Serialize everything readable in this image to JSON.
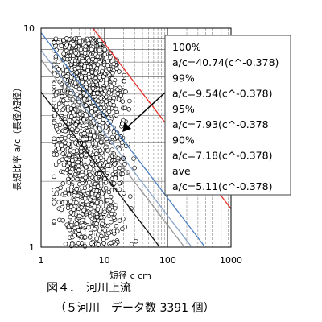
{
  "chart_data": {
    "type": "scatter",
    "xlabel": "短径 c cm",
    "ylabel": "長短比率 a/c（長径/短径）",
    "xscale": "log",
    "yscale": "log",
    "xlim": [
      1,
      1000
    ],
    "ylim": [
      1,
      10
    ],
    "x_ticks": [
      1,
      10,
      100,
      1000
    ],
    "x_tick_labels": [
      "1",
      "10",
      "100",
      "1000"
    ],
    "y_ticks": [
      1,
      10
    ],
    "y_tick_labels": [
      "1",
      "10"
    ],
    "grid": true,
    "curves": [
      {
        "label": "100%",
        "equation": "a/c=40.74(c^-0.378)",
        "coef": 40.74,
        "exp": -0.378,
        "color": "#e8302a"
      },
      {
        "label": "99%",
        "equation": "a/c=9.54(c^-0.378)",
        "coef": 9.54,
        "exp": -0.378,
        "color": "#4a7fc0"
      },
      {
        "label": "95%",
        "equation": "a/c=7.93(c^-0.378",
        "coef": 7.93,
        "exp": -0.378,
        "color": "#8aa4c8"
      },
      {
        "label": "90%",
        "equation": "a/c=7.18(c^-0.378)",
        "coef": 7.18,
        "exp": -0.378,
        "color": "#999999"
      },
      {
        "label": "ave",
        "equation": "a/c=5.11(c^-0.378)",
        "coef": 5.11,
        "exp": -0.378,
        "color": "#111111"
      }
    ],
    "legend_placement": "top-right",
    "point_count": 3391,
    "scatter_envelope": "points fill roughly c 2–40 cm, a/c 1–9, bounded above by the 100% curve"
  },
  "caption": {
    "title": "図４．　河川上流",
    "subtitle": "（５河川　データ数 3391 個）"
  }
}
